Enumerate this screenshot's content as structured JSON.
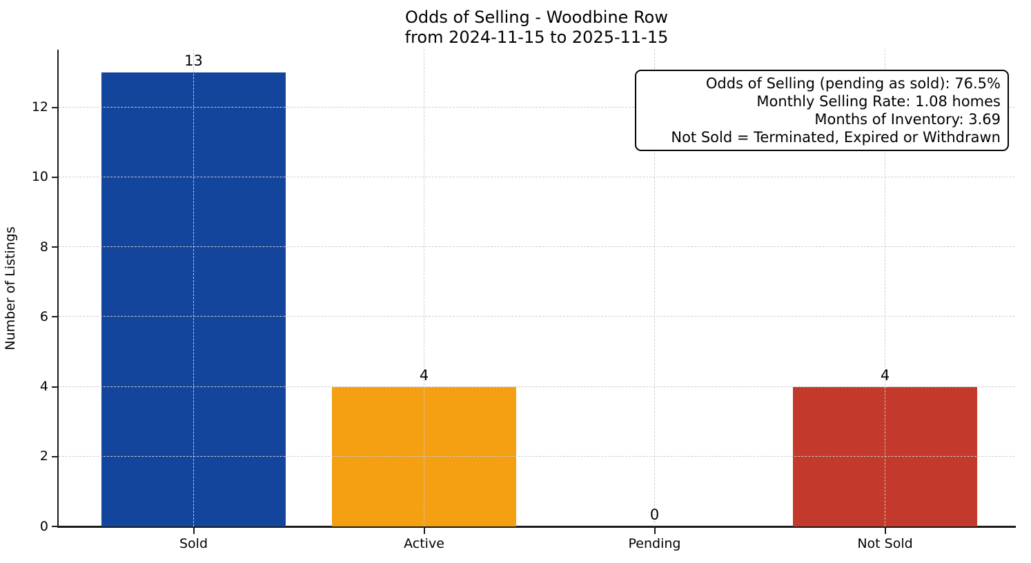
{
  "chart_data": {
    "type": "bar",
    "title": "Odds of Selling - Woodbine Row",
    "subtitle": "from 2024-11-15 to 2025-11-15",
    "categories": [
      "Sold",
      "Active",
      "Pending",
      "Not Sold"
    ],
    "values": [
      13,
      4,
      0,
      4
    ],
    "bar_colors": [
      "#14459D",
      "#F4A012",
      "#999999",
      "#C3392B"
    ],
    "xlabel": "",
    "ylabel": "Number of Listings",
    "ylim": [
      0,
      13.65
    ],
    "yticks": [
      0,
      2,
      4,
      6,
      8,
      10,
      12
    ],
    "grid": "dashed-both-axes",
    "legend_position": "none",
    "annotation_box": {
      "position": "top-right",
      "align": "right",
      "lines": [
        "Odds of Selling (pending as sold): 76.5%",
        "Monthly Selling Rate: 1.08 homes",
        "Months of Inventory: 3.69",
        "Not Sold = Terminated, Expired or Withdrawn"
      ]
    }
  },
  "colors": {
    "background": "#ffffff",
    "axis": "#1a1a1a",
    "grid": "#cccccc",
    "text": "#000000",
    "bar_sold": "#14459D",
    "bar_active": "#F4A012",
    "bar_not_sold": "#C3392B"
  }
}
